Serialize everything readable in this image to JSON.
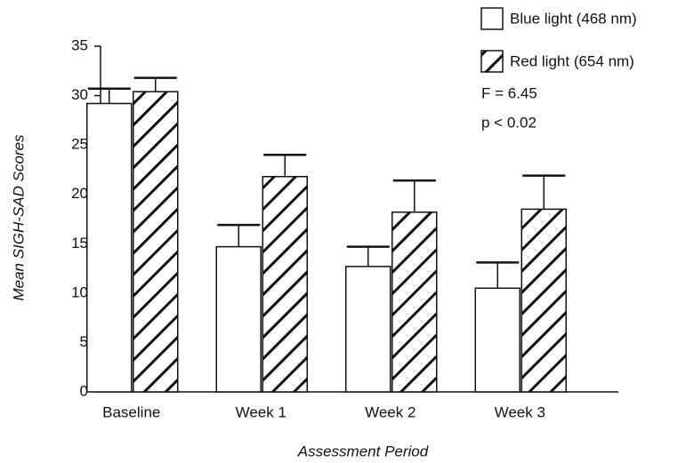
{
  "chart_data": {
    "type": "bar",
    "x_label": "Assessment Period",
    "y_label": "Mean SIGH-SAD Scores",
    "categories": [
      "Baseline",
      "Week 1",
      "Week 2",
      "Week 3"
    ],
    "series": [
      {
        "name": "Blue light (468 nm)",
        "color": "#ffffff",
        "pattern": "none",
        "values": [
          29.2,
          14.7,
          12.7,
          10.5
        ],
        "errors": [
          1.5,
          2.2,
          2.0,
          2.6
        ]
      },
      {
        "name": "Red light (654 nm)",
        "color": "#ffffff",
        "pattern": "hatch",
        "values": [
          30.4,
          21.8,
          18.2,
          18.5
        ],
        "errors": [
          1.4,
          2.2,
          3.2,
          3.4
        ]
      }
    ],
    "annotations": [
      "F = 6.45",
      "p < 0.02"
    ],
    "ylim": [
      0,
      35
    ],
    "yticks": [
      0,
      5,
      10,
      15,
      20,
      25,
      30,
      35
    ],
    "grid": false,
    "legend": "top-right"
  }
}
